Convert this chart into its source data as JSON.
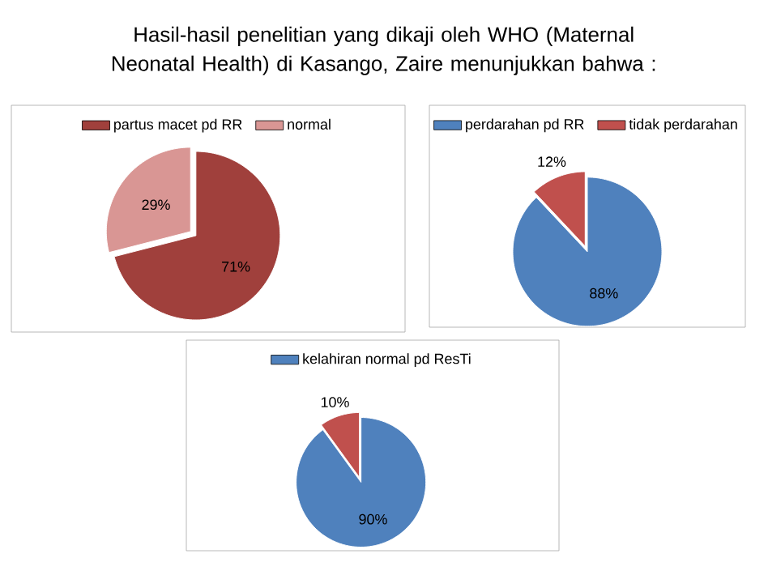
{
  "chart_data": [
    {
      "type": "pie",
      "title": "Hasil-hasil penelitian yang dikaji oleh WHO (Maternal Neonatal Health) di Kasango, Zaire menunjukkan bahwa :",
      "categories": [
        "partus macet pd RR",
        "normal"
      ],
      "values": [
        71,
        29
      ],
      "colors": [
        "#a0403c",
        "#d99694"
      ],
      "value_labels": [
        "71%",
        "29%"
      ],
      "legend": "top"
    },
    {
      "type": "pie",
      "categories": [
        "perdarahan pd RR",
        "tidak perdarahan"
      ],
      "values": [
        88,
        12
      ],
      "colors": [
        "#4f81bd",
        "#c0504d"
      ],
      "value_labels": [
        "88%",
        "12%"
      ],
      "legend": "top"
    },
    {
      "type": "pie",
      "categories": [
        "kelahiran normal pd ResTi",
        null
      ],
      "values": [
        90,
        10
      ],
      "colors": [
        "#4f81bd",
        "#c0504d"
      ],
      "value_labels": [
        "90%",
        "10%"
      ],
      "legend": "top"
    }
  ]
}
